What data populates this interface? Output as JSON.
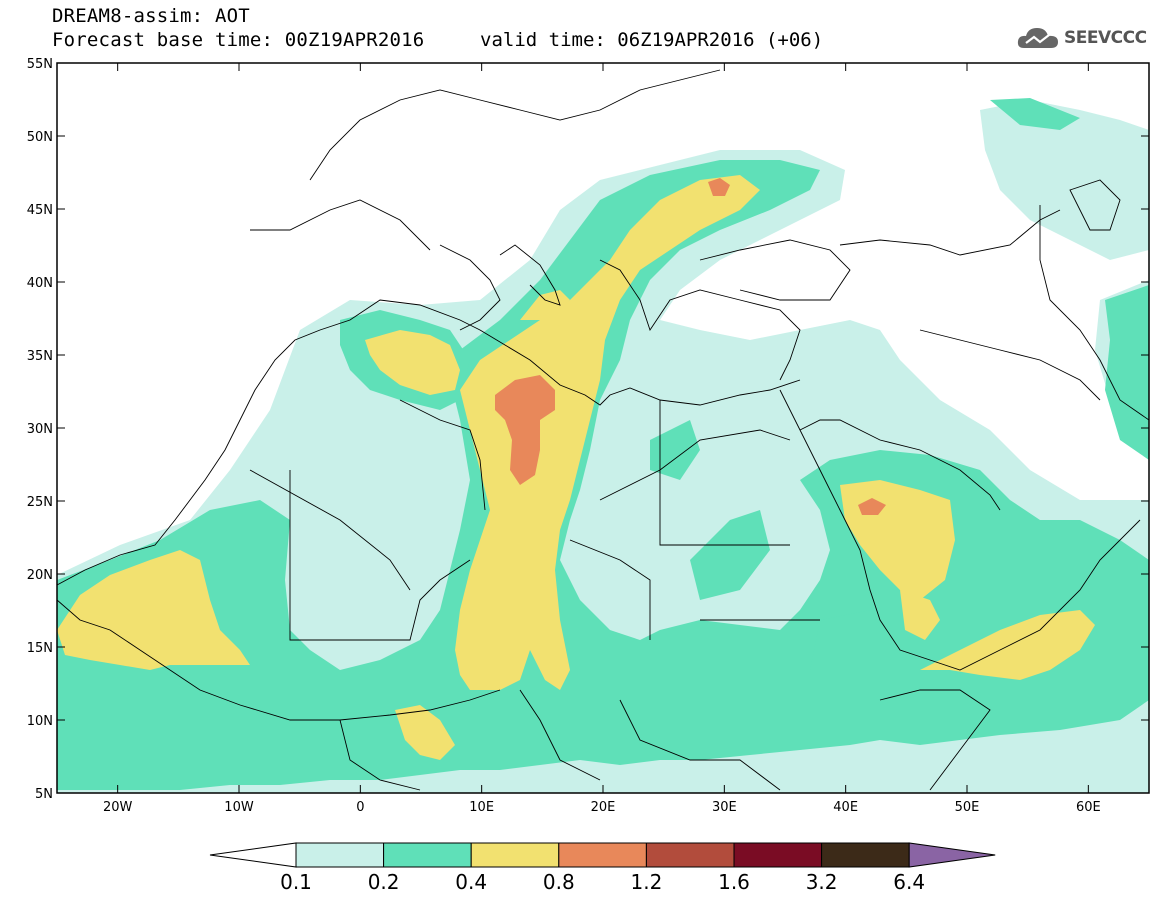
{
  "header": {
    "line1": "DREAM8-assim: AOT",
    "line2": "Forecast base time: 00Z19APR2016",
    "valid": "valid time: 06Z19APR2016 (+06)",
    "logo_text": "SEEVCCC",
    "logo_icon": "cloud-icon"
  },
  "map": {
    "projection": "lat-lon",
    "lon_range": [
      -25,
      65
    ],
    "lat_range": [
      5,
      55
    ],
    "lat_ticks": [
      {
        "value": 55,
        "label": "55N"
      },
      {
        "value": 50,
        "label": "50N"
      },
      {
        "value": 45,
        "label": "45N"
      },
      {
        "value": 40,
        "label": "40N"
      },
      {
        "value": 35,
        "label": "35N"
      },
      {
        "value": 30,
        "label": "30N"
      },
      {
        "value": 25,
        "label": "25N"
      },
      {
        "value": 20,
        "label": "20N"
      },
      {
        "value": 15,
        "label": "15N"
      },
      {
        "value": 10,
        "label": "10N"
      },
      {
        "value": 5,
        "label": "5N"
      }
    ],
    "lon_ticks": [
      {
        "value": -20,
        "label": "20W"
      },
      {
        "value": -10,
        "label": "10W"
      },
      {
        "value": 0,
        "label": "0"
      },
      {
        "value": 10,
        "label": "10E"
      },
      {
        "value": 20,
        "label": "20E"
      },
      {
        "value": 30,
        "label": "30E"
      },
      {
        "value": 40,
        "label": "40E"
      },
      {
        "value": 50,
        "label": "50E"
      },
      {
        "value": 60,
        "label": "60E"
      }
    ]
  },
  "colorbar": {
    "labels": [
      "0.1",
      "0.2",
      "0.4",
      "0.8",
      "1.2",
      "1.6",
      "3.2",
      "6.4"
    ],
    "under_color": "#ffffff",
    "colors": [
      "#c9f0e9",
      "#5fe0b8",
      "#f2e170",
      "#e8885a",
      "#b24c3c",
      "#7a0c24",
      "#3c2a18"
    ],
    "over_color": "#8a64a4"
  }
}
